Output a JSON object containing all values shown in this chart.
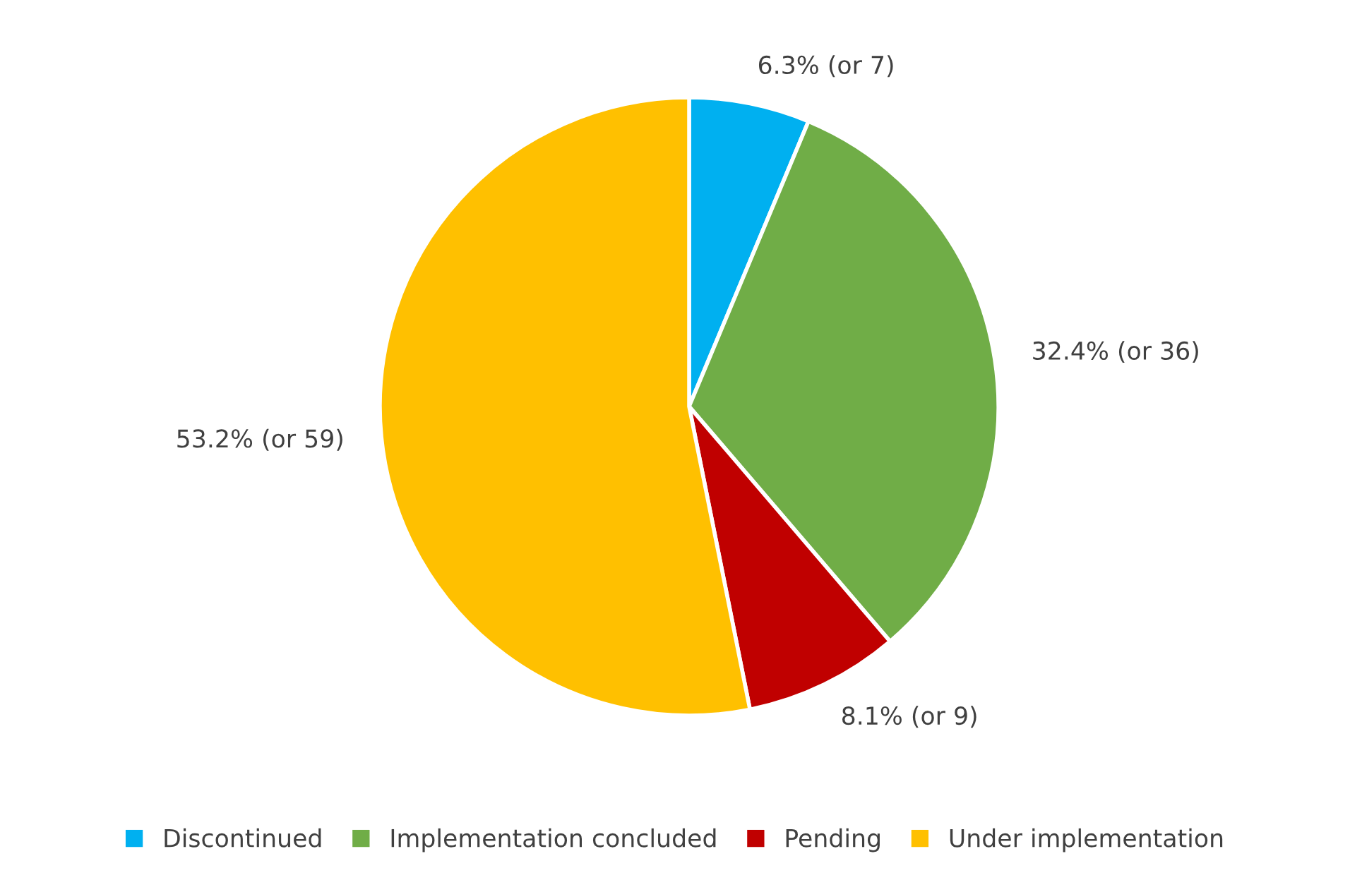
{
  "chart_data": {
    "type": "pie",
    "categories": [
      "Discontinued",
      "Implementation concluded",
      "Pending",
      "Under implementation"
    ],
    "values": [
      7,
      36,
      9,
      59
    ],
    "colors": [
      "#00b0f0",
      "#70ad47",
      "#c00000",
      "#ffc000"
    ],
    "value_labels": [
      "6.3% (or 7)",
      "32.4% (or 36)",
      "8.1% (or 9)",
      "53.2% (or 59)"
    ],
    "legend": "bottom"
  }
}
